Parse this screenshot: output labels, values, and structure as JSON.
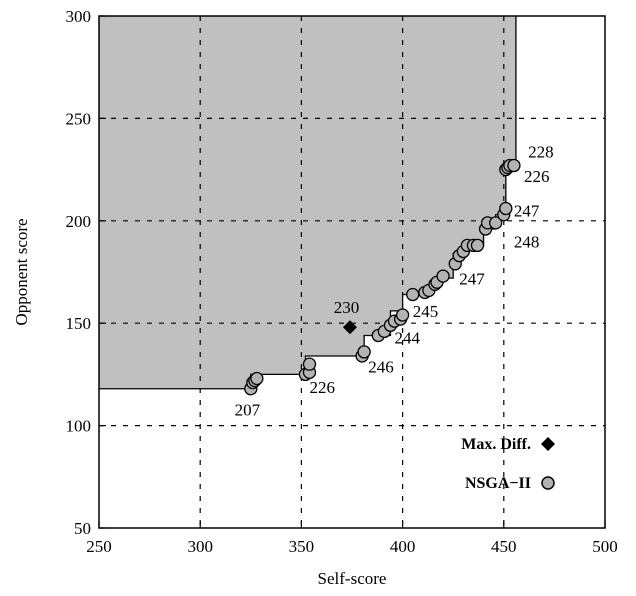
{
  "chart_data": {
    "type": "scatter",
    "title": "",
    "xlabel": "Self-score",
    "ylabel": "Opponent score",
    "xlim": [
      250,
      500
    ],
    "ylim": [
      50,
      300
    ],
    "xticks": [
      250,
      300,
      350,
      400,
      450,
      500
    ],
    "yticks": [
      50,
      100,
      150,
      200,
      250,
      300
    ],
    "xtick_labels": [
      "250",
      "300",
      "350",
      "400",
      "450",
      "500"
    ],
    "ytick_labels": [
      "50",
      "100",
      "150",
      "200",
      "250",
      "300"
    ],
    "grid": true,
    "grid_style": "dashed",
    "legend": "bottom-right",
    "colors": {
      "dominated_region": "#c0c0c0",
      "nsga_marker": "#b3b3b3",
      "max_diff_marker": "#000000"
    },
    "dominated_region_boundary": [
      [
        250,
        118
      ],
      [
        325,
        118
      ],
      [
        325,
        125
      ],
      [
        352,
        125
      ],
      [
        352,
        134
      ],
      [
        381,
        134
      ],
      [
        381,
        144
      ],
      [
        394,
        144
      ],
      [
        394,
        156
      ],
      [
        400,
        156
      ],
      [
        400,
        164
      ],
      [
        413,
        164
      ],
      [
        413,
        168
      ],
      [
        418,
        168
      ],
      [
        418,
        172
      ],
      [
        425,
        172
      ],
      [
        425,
        184
      ],
      [
        432,
        184
      ],
      [
        432,
        188
      ],
      [
        440,
        188
      ],
      [
        440,
        196
      ],
      [
        446,
        196
      ],
      [
        446,
        203
      ],
      [
        451,
        203
      ],
      [
        451,
        228
      ],
      [
        456,
        228
      ],
      [
        456,
        300
      ]
    ],
    "series": [
      {
        "name": "NSGA−II",
        "marker": "circle",
        "x": [
          325,
          326,
          327,
          328,
          352,
          354,
          354,
          380,
          381,
          388,
          391,
          394,
          396,
          399,
          400,
          405,
          411,
          413,
          416,
          417,
          420,
          426,
          428,
          430,
          432,
          435,
          437,
          441,
          442,
          446,
          450,
          451,
          451,
          452,
          453,
          455
        ],
        "y": [
          118,
          121,
          122,
          123,
          125,
          126,
          130,
          134,
          136,
          144,
          146,
          149,
          151,
          152,
          154,
          164,
          165,
          166,
          169,
          170,
          173,
          179,
          183,
          185,
          188,
          188,
          188,
          196,
          199,
          199,
          203,
          206,
          225,
          226,
          227,
          227
        ]
      },
      {
        "name": "Max. Diff.",
        "marker": "diamond",
        "x": [
          374
        ],
        "y": [
          148
        ]
      }
    ],
    "annotations": [
      {
        "text": "228",
        "x": 462,
        "y": 231
      },
      {
        "text": "226",
        "x": 460,
        "y": 219
      },
      {
        "text": "247",
        "x": 455,
        "y": 202
      },
      {
        "text": "248",
        "x": 455,
        "y": 187
      },
      {
        "text": "247",
        "x": 428,
        "y": 169
      },
      {
        "text": "245",
        "x": 405,
        "y": 153
      },
      {
        "text": "244",
        "x": 396,
        "y": 140
      },
      {
        "text": "246",
        "x": 383,
        "y": 126
      },
      {
        "text": "230",
        "x": 366,
        "y": 155
      },
      {
        "text": "226",
        "x": 354,
        "y": 116
      },
      {
        "text": "207",
        "x": 317,
        "y": 105
      }
    ]
  }
}
